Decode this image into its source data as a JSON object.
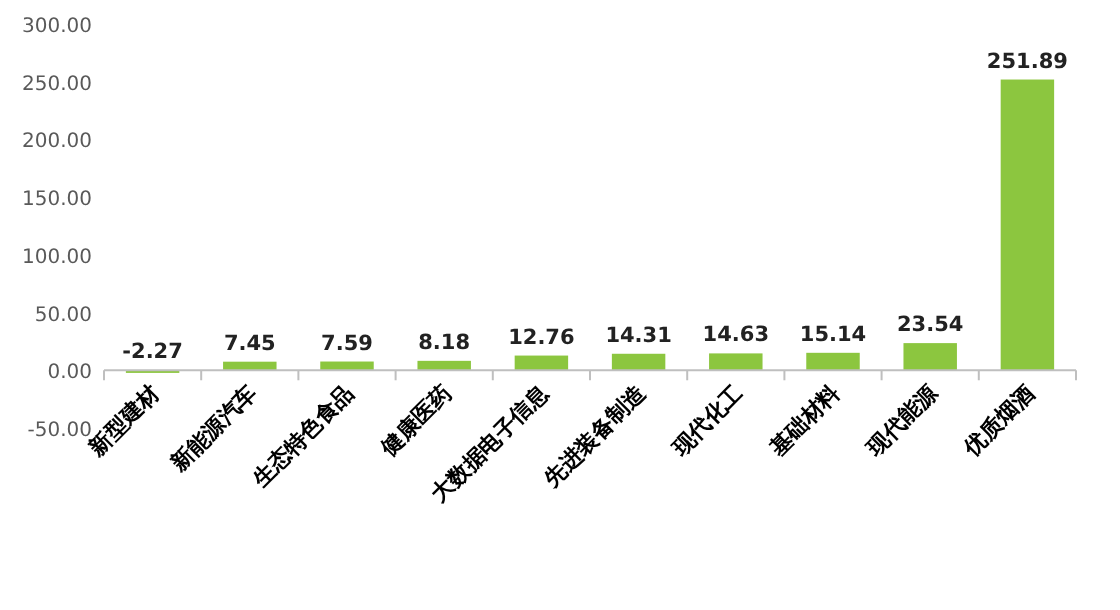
{
  "chart_data": {
    "type": "bar",
    "categories": [
      "新型建材",
      "新能源汽车",
      "生态特色食品",
      "健康医药",
      "大数据电子信息",
      "先进装备制造",
      "现代化工",
      "基础材料",
      "现代能源",
      "优质烟酒"
    ],
    "values": [
      -2.27,
      7.45,
      7.59,
      8.18,
      12.76,
      14.31,
      14.63,
      15.14,
      23.54,
      251.89
    ],
    "color": "#8cc63f",
    "ylim": [
      -50,
      300
    ],
    "yticks": [
      {
        "value": -50,
        "label": "-50.00"
      },
      {
        "value": 0,
        "label": "0.00"
      },
      {
        "value": 50,
        "label": "50.00"
      },
      {
        "value": 100,
        "label": "100.00"
      },
      {
        "value": 150,
        "label": "150.00"
      },
      {
        "value": 200,
        "label": "200.00"
      },
      {
        "value": 250,
        "label": "250.00"
      },
      {
        "value": 300,
        "label": "300.00"
      }
    ],
    "data_labels": true,
    "grid": false
  }
}
